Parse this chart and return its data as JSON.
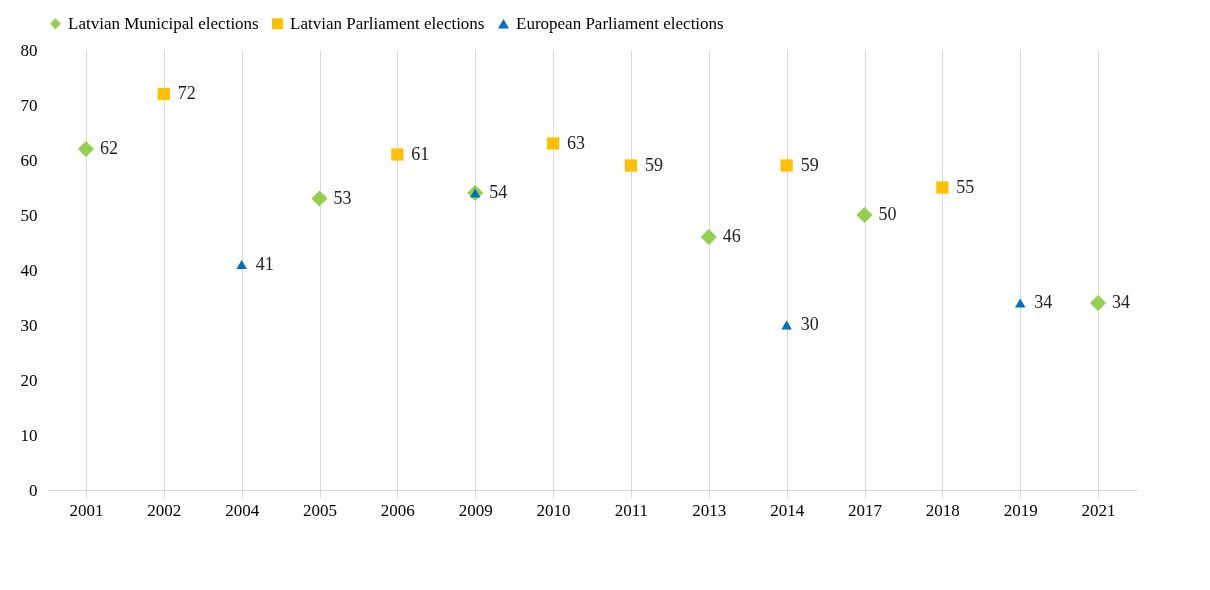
{
  "chart_data": {
    "type": "scatter",
    "categories": [
      "2001",
      "2002",
      "2004",
      "2005",
      "2006",
      "2009",
      "2010",
      "2011",
      "2013",
      "2014",
      "2017",
      "2018",
      "2019",
      "2021"
    ],
    "series": [
      {
        "name": "Latvian Municipal elections",
        "color": "#92d050",
        "marker": "diamond",
        "values": [
          62,
          null,
          null,
          53,
          null,
          54,
          null,
          null,
          46,
          null,
          50,
          null,
          null,
          34
        ],
        "value_labels": [
          "62",
          null,
          null,
          "53",
          null,
          "54",
          null,
          null,
          "46",
          null,
          "50",
          null,
          null,
          "34"
        ]
      },
      {
        "name": "Latvian Parliament elections",
        "color": "#ffc000",
        "marker": "square",
        "values": [
          null,
          72,
          null,
          null,
          61,
          null,
          63,
          59,
          null,
          59,
          null,
          55,
          null,
          null
        ],
        "value_labels": [
          null,
          "72",
          null,
          null,
          "61",
          null,
          "63",
          "59",
          null,
          "59",
          null,
          "55",
          null,
          null
        ]
      },
      {
        "name": "European Parliament elections",
        "color": "#0070c0",
        "marker": "triangle",
        "values": [
          null,
          null,
          41,
          null,
          null,
          54,
          null,
          null,
          null,
          30,
          null,
          null,
          34,
          null
        ],
        "value_labels": [
          null,
          null,
          "41",
          null,
          null,
          null,
          null,
          null,
          null,
          "30",
          null,
          null,
          "34",
          null
        ]
      }
    ],
    "ylim": [
      0,
      80
    ],
    "yticks": [
      0,
      10,
      20,
      30,
      40,
      50,
      60,
      70,
      80
    ],
    "grid": "x",
    "legend": "top"
  }
}
